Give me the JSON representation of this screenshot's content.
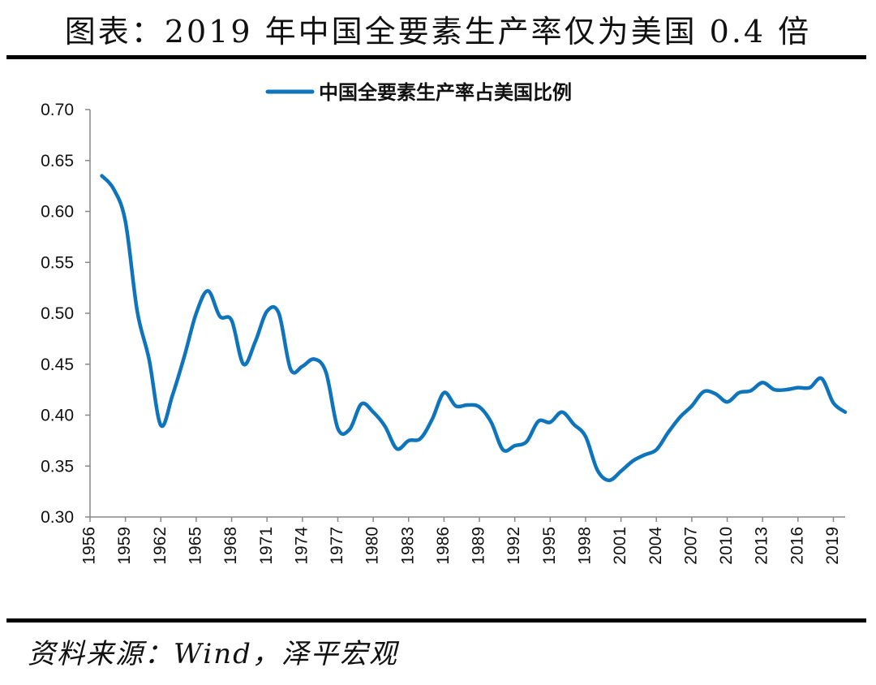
{
  "page": {
    "title": "图表：2019 年中国全要素生产率仅为美国 0.4 倍",
    "source": "资料来源：Wind，泽平宏观"
  },
  "colors": {
    "series": "#0e74bc",
    "axis": "#888888",
    "rule": "#000000"
  },
  "chart_data": {
    "type": "line",
    "series": [
      {
        "name": "中国全要素生产率占美国比例",
        "x": [
          1957,
          1958,
          1959,
          1960,
          1961,
          1962,
          1963,
          1964,
          1965,
          1966,
          1967,
          1968,
          1969,
          1970,
          1971,
          1972,
          1973,
          1974,
          1975,
          1976,
          1977,
          1978,
          1979,
          1980,
          1981,
          1982,
          1983,
          1984,
          1985,
          1986,
          1987,
          1988,
          1989,
          1990,
          1991,
          1992,
          1993,
          1994,
          1995,
          1996,
          1997,
          1998,
          1999,
          2000,
          2001,
          2002,
          2003,
          2004,
          2005,
          2006,
          2007,
          2008,
          2009,
          2010,
          2011,
          2012,
          2013,
          2014,
          2015,
          2016,
          2017,
          2018,
          2019,
          2020
        ],
        "values": [
          0.635,
          0.622,
          0.59,
          0.502,
          0.455,
          0.39,
          0.42,
          0.458,
          0.5,
          0.522,
          0.497,
          0.493,
          0.45,
          0.472,
          0.502,
          0.5,
          0.445,
          0.448,
          0.455,
          0.442,
          0.387,
          0.386,
          0.411,
          0.403,
          0.389,
          0.367,
          0.375,
          0.377,
          0.396,
          0.422,
          0.409,
          0.41,
          0.408,
          0.393,
          0.366,
          0.37,
          0.374,
          0.394,
          0.393,
          0.403,
          0.391,
          0.379,
          0.346,
          0.336,
          0.345,
          0.355,
          0.361,
          0.366,
          0.383,
          0.398,
          0.409,
          0.423,
          0.421,
          0.413,
          0.422,
          0.424,
          0.432,
          0.425,
          0.425,
          0.427,
          0.427,
          0.436,
          0.412,
          0.403
        ]
      }
    ],
    "x_ticks": [
      1956,
      1959,
      1962,
      1965,
      1968,
      1971,
      1974,
      1977,
      1980,
      1983,
      1986,
      1989,
      1992,
      1995,
      1998,
      2001,
      2004,
      2007,
      2010,
      2013,
      2016,
      2019
    ],
    "y_ticks": [
      "0.30",
      "0.35",
      "0.40",
      "0.45",
      "0.50",
      "0.55",
      "0.60",
      "0.65",
      "0.70"
    ],
    "ylim": [
      0.3,
      0.7
    ],
    "xlim": [
      1956,
      2020
    ],
    "grid": false,
    "legend_position": "top-center"
  }
}
